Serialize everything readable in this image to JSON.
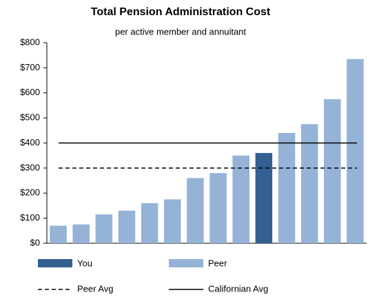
{
  "chart_data": {
    "type": "bar",
    "title": "Total Pension Administration Cost",
    "subtitle": "per active member and annuitant",
    "categories": [
      null,
      null,
      null,
      null,
      null,
      null,
      null,
      null,
      null,
      null,
      null,
      null,
      null,
      null
    ],
    "series": [
      {
        "name": "You",
        "color": "#335f91",
        "values": [
          null,
          null,
          null,
          null,
          null,
          null,
          null,
          null,
          null,
          360,
          null,
          null,
          null,
          null
        ]
      },
      {
        "name": "Peer",
        "color": "#95b3d7",
        "values": [
          70,
          75,
          115,
          130,
          160,
          175,
          260,
          280,
          350,
          null,
          440,
          475,
          575,
          735
        ]
      }
    ],
    "reference_lines": [
      {
        "name": "Peer Avg",
        "value": 300,
        "style": "dashed"
      },
      {
        "name": "Californian Avg",
        "value": 400,
        "style": "solid"
      }
    ],
    "ylim": [
      0,
      800
    ],
    "yticks": [
      {
        "value": 0,
        "label": "$0"
      },
      {
        "value": 100,
        "label": "$100"
      },
      {
        "value": 200,
        "label": "$200"
      },
      {
        "value": 300,
        "label": "$300"
      },
      {
        "value": 400,
        "label": "$400"
      },
      {
        "value": 500,
        "label": "$500"
      },
      {
        "value": 600,
        "label": "$600"
      },
      {
        "value": 700,
        "label": "$700"
      },
      {
        "value": 800,
        "label": "$800"
      }
    ],
    "grid": false
  }
}
